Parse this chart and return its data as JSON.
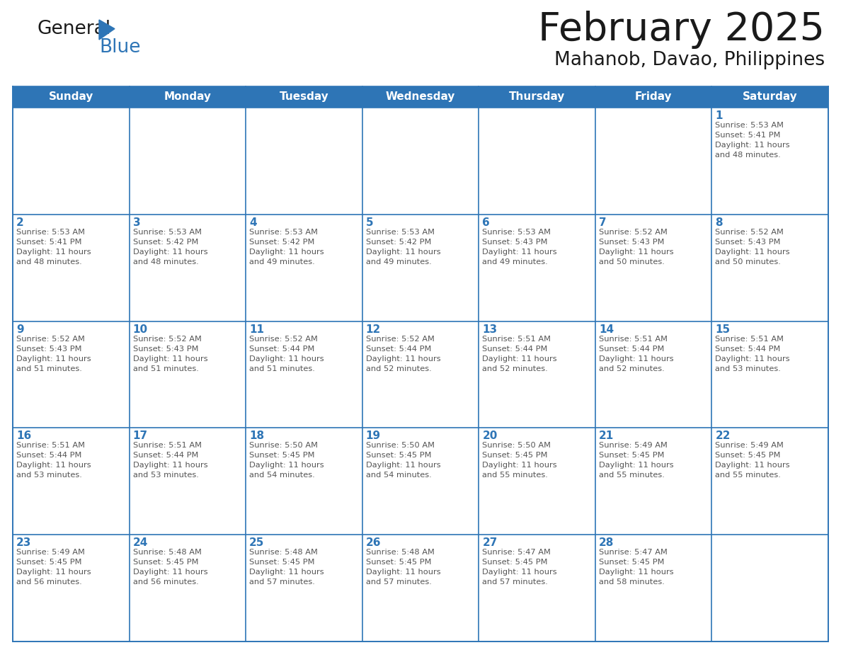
{
  "title": "February 2025",
  "subtitle": "Mahanob, Davao, Philippines",
  "header_color": "#2E75B6",
  "header_text_color": "#FFFFFF",
  "cell_bg_color": "#FFFFFF",
  "grid_line_color": "#2E75B6",
  "grid_line_color_light": "#AAAAAA",
  "day_number_color": "#2E75B6",
  "info_text_color": "#555555",
  "days_of_week": [
    "Sunday",
    "Monday",
    "Tuesday",
    "Wednesday",
    "Thursday",
    "Friday",
    "Saturday"
  ],
  "calendar_data": [
    [
      {
        "day": "",
        "info": ""
      },
      {
        "day": "",
        "info": ""
      },
      {
        "day": "",
        "info": ""
      },
      {
        "day": "",
        "info": ""
      },
      {
        "day": "",
        "info": ""
      },
      {
        "day": "",
        "info": ""
      },
      {
        "day": "1",
        "info": "Sunrise: 5:53 AM\nSunset: 5:41 PM\nDaylight: 11 hours\nand 48 minutes."
      }
    ],
    [
      {
        "day": "2",
        "info": "Sunrise: 5:53 AM\nSunset: 5:41 PM\nDaylight: 11 hours\nand 48 minutes."
      },
      {
        "day": "3",
        "info": "Sunrise: 5:53 AM\nSunset: 5:42 PM\nDaylight: 11 hours\nand 48 minutes."
      },
      {
        "day": "4",
        "info": "Sunrise: 5:53 AM\nSunset: 5:42 PM\nDaylight: 11 hours\nand 49 minutes."
      },
      {
        "day": "5",
        "info": "Sunrise: 5:53 AM\nSunset: 5:42 PM\nDaylight: 11 hours\nand 49 minutes."
      },
      {
        "day": "6",
        "info": "Sunrise: 5:53 AM\nSunset: 5:43 PM\nDaylight: 11 hours\nand 49 minutes."
      },
      {
        "day": "7",
        "info": "Sunrise: 5:52 AM\nSunset: 5:43 PM\nDaylight: 11 hours\nand 50 minutes."
      },
      {
        "day": "8",
        "info": "Sunrise: 5:52 AM\nSunset: 5:43 PM\nDaylight: 11 hours\nand 50 minutes."
      }
    ],
    [
      {
        "day": "9",
        "info": "Sunrise: 5:52 AM\nSunset: 5:43 PM\nDaylight: 11 hours\nand 51 minutes."
      },
      {
        "day": "10",
        "info": "Sunrise: 5:52 AM\nSunset: 5:43 PM\nDaylight: 11 hours\nand 51 minutes."
      },
      {
        "day": "11",
        "info": "Sunrise: 5:52 AM\nSunset: 5:44 PM\nDaylight: 11 hours\nand 51 minutes."
      },
      {
        "day": "12",
        "info": "Sunrise: 5:52 AM\nSunset: 5:44 PM\nDaylight: 11 hours\nand 52 minutes."
      },
      {
        "day": "13",
        "info": "Sunrise: 5:51 AM\nSunset: 5:44 PM\nDaylight: 11 hours\nand 52 minutes."
      },
      {
        "day": "14",
        "info": "Sunrise: 5:51 AM\nSunset: 5:44 PM\nDaylight: 11 hours\nand 52 minutes."
      },
      {
        "day": "15",
        "info": "Sunrise: 5:51 AM\nSunset: 5:44 PM\nDaylight: 11 hours\nand 53 minutes."
      }
    ],
    [
      {
        "day": "16",
        "info": "Sunrise: 5:51 AM\nSunset: 5:44 PM\nDaylight: 11 hours\nand 53 minutes."
      },
      {
        "day": "17",
        "info": "Sunrise: 5:51 AM\nSunset: 5:44 PM\nDaylight: 11 hours\nand 53 minutes."
      },
      {
        "day": "18",
        "info": "Sunrise: 5:50 AM\nSunset: 5:45 PM\nDaylight: 11 hours\nand 54 minutes."
      },
      {
        "day": "19",
        "info": "Sunrise: 5:50 AM\nSunset: 5:45 PM\nDaylight: 11 hours\nand 54 minutes."
      },
      {
        "day": "20",
        "info": "Sunrise: 5:50 AM\nSunset: 5:45 PM\nDaylight: 11 hours\nand 55 minutes."
      },
      {
        "day": "21",
        "info": "Sunrise: 5:49 AM\nSunset: 5:45 PM\nDaylight: 11 hours\nand 55 minutes."
      },
      {
        "day": "22",
        "info": "Sunrise: 5:49 AM\nSunset: 5:45 PM\nDaylight: 11 hours\nand 55 minutes."
      }
    ],
    [
      {
        "day": "23",
        "info": "Sunrise: 5:49 AM\nSunset: 5:45 PM\nDaylight: 11 hours\nand 56 minutes."
      },
      {
        "day": "24",
        "info": "Sunrise: 5:48 AM\nSunset: 5:45 PM\nDaylight: 11 hours\nand 56 minutes."
      },
      {
        "day": "25",
        "info": "Sunrise: 5:48 AM\nSunset: 5:45 PM\nDaylight: 11 hours\nand 57 minutes."
      },
      {
        "day": "26",
        "info": "Sunrise: 5:48 AM\nSunset: 5:45 PM\nDaylight: 11 hours\nand 57 minutes."
      },
      {
        "day": "27",
        "info": "Sunrise: 5:47 AM\nSunset: 5:45 PM\nDaylight: 11 hours\nand 57 minutes."
      },
      {
        "day": "28",
        "info": "Sunrise: 5:47 AM\nSunset: 5:45 PM\nDaylight: 11 hours\nand 58 minutes."
      },
      {
        "day": "",
        "info": ""
      }
    ]
  ],
  "logo_general_color": "#1a1a1a",
  "logo_blue_color": "#2E75B6",
  "logo_triangle_color": "#2E75B6",
  "title_color": "#1a1a1a",
  "subtitle_color": "#1a1a1a"
}
